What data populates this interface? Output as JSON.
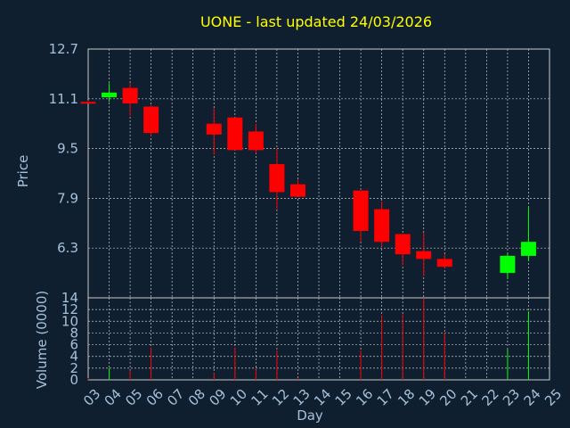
{
  "chart_data": {
    "type": "candlestick",
    "title": "UONE - last updated 24/03/2026",
    "xlabel": "Day",
    "price_ylabel": "Price",
    "volume_ylabel": "Volume (0000)",
    "x_ticks": [
      "03",
      "04",
      "05",
      "06",
      "07",
      "08",
      "09",
      "10",
      "11",
      "12",
      "13",
      "14",
      "15",
      "16",
      "17",
      "18",
      "19",
      "20",
      "21",
      "22",
      "23",
      "24",
      "25"
    ],
    "price_ticks": [
      "12.7",
      "11.1",
      "9.5",
      "7.9",
      "6.3"
    ],
    "price_tick_values": [
      12.7,
      11.1,
      9.5,
      7.9,
      6.3
    ],
    "price_ylim": [
      4.7,
      12.7
    ],
    "volume_ticks": [
      "14",
      "12",
      "10",
      "8",
      "6",
      "4",
      "2",
      "0"
    ],
    "volume_tick_values": [
      14,
      12,
      10,
      8,
      6,
      4,
      2,
      0
    ],
    "volume_ylim": [
      0,
      14
    ],
    "colors": {
      "up": "#00ff00",
      "down": "#ff0000",
      "flat": "#ff0000"
    },
    "candles": [
      {
        "day": "03",
        "open": 11.0,
        "high": 11.05,
        "low": 10.95,
        "close": 11.0,
        "volume": 0.3
      },
      {
        "day": "04",
        "open": 11.15,
        "high": 11.6,
        "low": 11.0,
        "close": 11.3,
        "volume": 2.0
      },
      {
        "day": "05",
        "open": 11.45,
        "high": 11.6,
        "low": 10.55,
        "close": 10.95,
        "volume": 1.6
      },
      {
        "day": "06",
        "open": 10.85,
        "high": 10.9,
        "low": 9.9,
        "close": 10.0,
        "volume": 5.5
      },
      {
        "day": "09",
        "open": 10.3,
        "high": 10.8,
        "low": 9.3,
        "close": 9.95,
        "volume": 1.2
      },
      {
        "day": "10",
        "open": 10.5,
        "high": 10.5,
        "low": 9.45,
        "close": 9.45,
        "volume": 5.5
      },
      {
        "day": "11",
        "open": 10.05,
        "high": 10.3,
        "low": 9.35,
        "close": 9.45,
        "volume": 1.8
      },
      {
        "day": "12",
        "open": 9.0,
        "high": 9.5,
        "low": 7.55,
        "close": 8.1,
        "volume": 5.0
      },
      {
        "day": "13",
        "open": 8.35,
        "high": 8.5,
        "low": 7.95,
        "close": 7.95,
        "volume": 0.3
      },
      {
        "day": "16",
        "open": 8.15,
        "high": 8.15,
        "low": 6.5,
        "close": 6.85,
        "volume": 5.0
      },
      {
        "day": "17",
        "open": 7.55,
        "high": 7.8,
        "low": 6.35,
        "close": 6.5,
        "volume": 11.0
      },
      {
        "day": "18",
        "open": 6.75,
        "high": 6.75,
        "low": 5.75,
        "close": 6.1,
        "volume": 11.2
      },
      {
        "day": "19",
        "open": 6.2,
        "high": 6.8,
        "low": 5.4,
        "close": 5.95,
        "volume": 14.0
      },
      {
        "day": "20",
        "open": 5.95,
        "high": 6.1,
        "low": 5.65,
        "close": 5.7,
        "volume": 8.0
      },
      {
        "day": "23",
        "open": 5.5,
        "high": 6.15,
        "low": 5.3,
        "close": 6.05,
        "volume": 5.2
      },
      {
        "day": "24",
        "open": 6.05,
        "high": 7.6,
        "low": 5.9,
        "close": 6.5,
        "volume": 11.7
      }
    ]
  }
}
